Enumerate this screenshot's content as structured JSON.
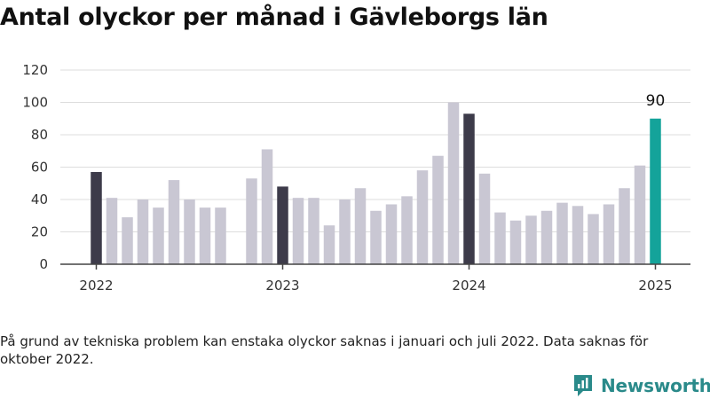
{
  "title": "Antal olyckor per månad i Gävleborgs län",
  "note": "På grund av tekniska problem kan enstaka olyckor saknas i januari och juli 2022. Data saknas för oktober 2022.",
  "brand": {
    "name": "Newsworthy",
    "icon": "newsworthy-logo-icon",
    "color": "#2a8a8a"
  },
  "colors": {
    "january": "#3d3b4a",
    "other": "#c9c7d3",
    "latest": "#14a39a"
  },
  "chart_data": {
    "type": "bar",
    "title": "Antal olyckor per månad i Gävleborgs län",
    "xlabel": "",
    "ylabel": "",
    "ylim": [
      0,
      120
    ],
    "yticks": [
      0,
      20,
      40,
      60,
      80,
      100,
      120
    ],
    "x_start": "2022-01",
    "xticks": [
      "2022",
      "2023",
      "2024",
      "2025"
    ],
    "grid": true,
    "legend": "none",
    "annotation": {
      "month": "2025-01",
      "label": "90"
    },
    "values": [
      57,
      41,
      29,
      40,
      35,
      52,
      40,
      35,
      35,
      null,
      53,
      71,
      48,
      41,
      41,
      24,
      40,
      47,
      33,
      37,
      42,
      58,
      67,
      100,
      93,
      56,
      32,
      27,
      30,
      33,
      38,
      36,
      31,
      37,
      47,
      61,
      90
    ]
  }
}
